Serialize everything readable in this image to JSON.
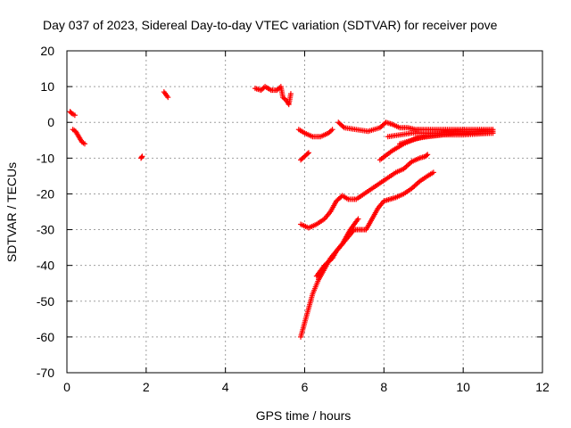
{
  "chart_data": {
    "type": "scatter",
    "title": "Day 037 of 2023, Sidereal Day-to-day VTEC variation (SDTVAR) for receiver pove",
    "xlabel": "GPS time / hours",
    "ylabel": "SDTVAR / TECUs",
    "xlim": [
      0,
      12
    ],
    "ylim": [
      -70,
      20
    ],
    "xticks": [
      0,
      2,
      4,
      6,
      8,
      10,
      12
    ],
    "yticks": [
      20,
      10,
      0,
      -10,
      -20,
      -30,
      -40,
      -50,
      -60,
      -70
    ],
    "grid": true,
    "marker": "plus",
    "color": "#ff0000",
    "tracks": [
      {
        "name": "early-1",
        "points": [
          [
            0.08,
            3
          ],
          [
            0.12,
            2.5
          ],
          [
            0.2,
            2
          ]
        ]
      },
      {
        "name": "early-2",
        "points": [
          [
            0.15,
            -2
          ],
          [
            0.22,
            -2.5
          ],
          [
            0.3,
            -4
          ],
          [
            0.38,
            -5.5
          ],
          [
            0.45,
            -6
          ]
        ]
      },
      {
        "name": "early-3",
        "points": [
          [
            1.9,
            -9.5
          ],
          [
            1.87,
            -10
          ]
        ]
      },
      {
        "name": "early-4",
        "points": [
          [
            2.45,
            8.5
          ],
          [
            2.55,
            7
          ]
        ]
      },
      {
        "name": "noon-1",
        "points": [
          [
            4.75,
            9.5
          ],
          [
            4.9,
            9
          ],
          [
            5.0,
            10
          ],
          [
            5.15,
            9
          ],
          [
            5.3,
            9
          ],
          [
            5.4,
            10
          ],
          [
            5.45,
            7
          ],
          [
            5.55,
            6
          ],
          [
            5.6,
            5
          ],
          [
            5.65,
            8
          ]
        ]
      },
      {
        "name": "track-a",
        "points": [
          [
            5.85,
            -2
          ],
          [
            6.0,
            -3
          ],
          [
            6.2,
            -4
          ],
          [
            6.4,
            -4
          ],
          [
            6.6,
            -3
          ],
          [
            6.7,
            -2
          ]
        ]
      },
      {
        "name": "track-b",
        "points": [
          [
            5.9,
            -10.5
          ],
          [
            6.05,
            -9
          ],
          [
            6.1,
            -8.5
          ]
        ]
      },
      {
        "name": "track-c",
        "points": [
          [
            6.85,
            0
          ],
          [
            7.0,
            -1.5
          ],
          [
            7.3,
            -2
          ],
          [
            7.6,
            -2.5
          ],
          [
            7.9,
            -1.5
          ],
          [
            8.05,
            0
          ],
          [
            8.2,
            -0.5
          ],
          [
            8.4,
            -1.5
          ],
          [
            8.6,
            -1.5
          ],
          [
            8.8,
            -2
          ],
          [
            9.0,
            -2
          ],
          [
            9.3,
            -2
          ],
          [
            9.6,
            -2
          ],
          [
            9.9,
            -2
          ],
          [
            10.2,
            -2
          ],
          [
            10.5,
            -2
          ],
          [
            10.75,
            -2
          ]
        ]
      },
      {
        "name": "track-d",
        "points": [
          [
            8.1,
            -4
          ],
          [
            8.4,
            -3.5
          ],
          [
            8.7,
            -3
          ],
          [
            9.0,
            -3
          ],
          [
            9.4,
            -3
          ],
          [
            9.8,
            -2.5
          ],
          [
            10.2,
            -2.5
          ],
          [
            10.75,
            -2.5
          ]
        ]
      },
      {
        "name": "track-e",
        "points": [
          [
            8.4,
            -6
          ],
          [
            8.7,
            -5
          ],
          [
            9.0,
            -4
          ],
          [
            9.4,
            -3.5
          ],
          [
            9.8,
            -3
          ],
          [
            10.2,
            -3
          ],
          [
            10.75,
            -3
          ]
        ]
      },
      {
        "name": "track-f",
        "points": [
          [
            7.9,
            -10.5
          ],
          [
            8.2,
            -8
          ],
          [
            8.5,
            -6
          ],
          [
            8.8,
            -4.5
          ],
          [
            9.1,
            -4
          ],
          [
            9.5,
            -3.5
          ],
          [
            10.0,
            -3.5
          ],
          [
            10.75,
            -3
          ]
        ]
      },
      {
        "name": "track-g",
        "points": [
          [
            5.9,
            -28.5
          ],
          [
            6.1,
            -29.5
          ],
          [
            6.3,
            -28.5
          ],
          [
            6.5,
            -27
          ],
          [
            6.65,
            -25
          ],
          [
            6.8,
            -22
          ],
          [
            6.95,
            -20.5
          ],
          [
            7.1,
            -21.5
          ],
          [
            7.3,
            -21.5
          ],
          [
            7.5,
            -20
          ],
          [
            7.7,
            -18.5
          ],
          [
            7.9,
            -17
          ],
          [
            8.1,
            -15.5
          ],
          [
            8.3,
            -14
          ],
          [
            8.5,
            -13
          ],
          [
            8.7,
            -11
          ],
          [
            8.9,
            -10
          ],
          [
            9.05,
            -9.5
          ],
          [
            9.1,
            -9
          ]
        ]
      },
      {
        "name": "track-h",
        "points": [
          [
            5.9,
            -60
          ],
          [
            6.0,
            -56
          ],
          [
            6.1,
            -52
          ],
          [
            6.2,
            -48
          ],
          [
            6.35,
            -44
          ],
          [
            6.5,
            -41
          ],
          [
            6.65,
            -38
          ],
          [
            6.8,
            -36
          ],
          [
            6.95,
            -34
          ],
          [
            7.1,
            -32
          ],
          [
            7.25,
            -30
          ],
          [
            7.4,
            -30
          ],
          [
            7.55,
            -30
          ],
          [
            7.7,
            -27
          ],
          [
            7.85,
            -24
          ],
          [
            8.0,
            -22
          ],
          [
            8.15,
            -21.5
          ],
          [
            8.3,
            -21
          ],
          [
            8.5,
            -20
          ],
          [
            8.7,
            -18.5
          ],
          [
            8.9,
            -16.5
          ],
          [
            9.1,
            -15
          ],
          [
            9.25,
            -14
          ]
        ]
      },
      {
        "name": "track-i",
        "points": [
          [
            6.3,
            -43
          ],
          [
            6.4,
            -41.5
          ],
          [
            6.5,
            -40
          ],
          [
            6.6,
            -39
          ],
          [
            6.7,
            -38
          ],
          [
            6.8,
            -36
          ],
          [
            6.95,
            -34
          ],
          [
            7.05,
            -32
          ],
          [
            7.15,
            -30
          ],
          [
            7.25,
            -28.5
          ],
          [
            7.35,
            -27
          ]
        ]
      }
    ]
  }
}
